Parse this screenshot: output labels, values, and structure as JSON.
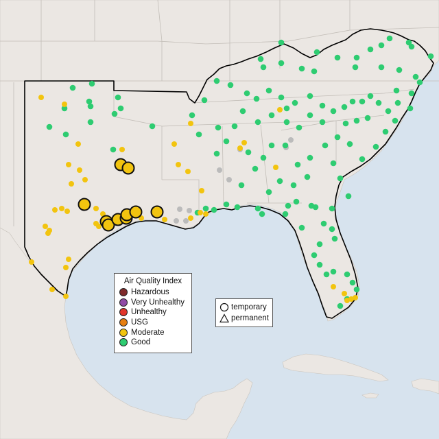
{
  "map": {
    "colors": {
      "water": "#d7e3ee",
      "land": "#ebe7e3",
      "border": "#bdbdbd",
      "region_outline": "#000000"
    }
  },
  "legend_aqi": {
    "title": "Air Quality Index",
    "items": [
      {
        "label": "Hazardous",
        "color": "#7e2a2a"
      },
      {
        "label": "Very Unhealthy",
        "color": "#8f4aa6"
      },
      {
        "label": "Unhealthy",
        "color": "#e0352b"
      },
      {
        "label": "USG",
        "color": "#e67e10"
      },
      {
        "label": "Moderate",
        "color": "#f2c40f"
      },
      {
        "label": "Good",
        "color": "#2ecc71"
      }
    ]
  },
  "legend_type": {
    "items": [
      {
        "label": "temporary",
        "icon": "circle-icon"
      },
      {
        "label": "permanent",
        "icon": "triangle-icon"
      }
    ]
  }
}
